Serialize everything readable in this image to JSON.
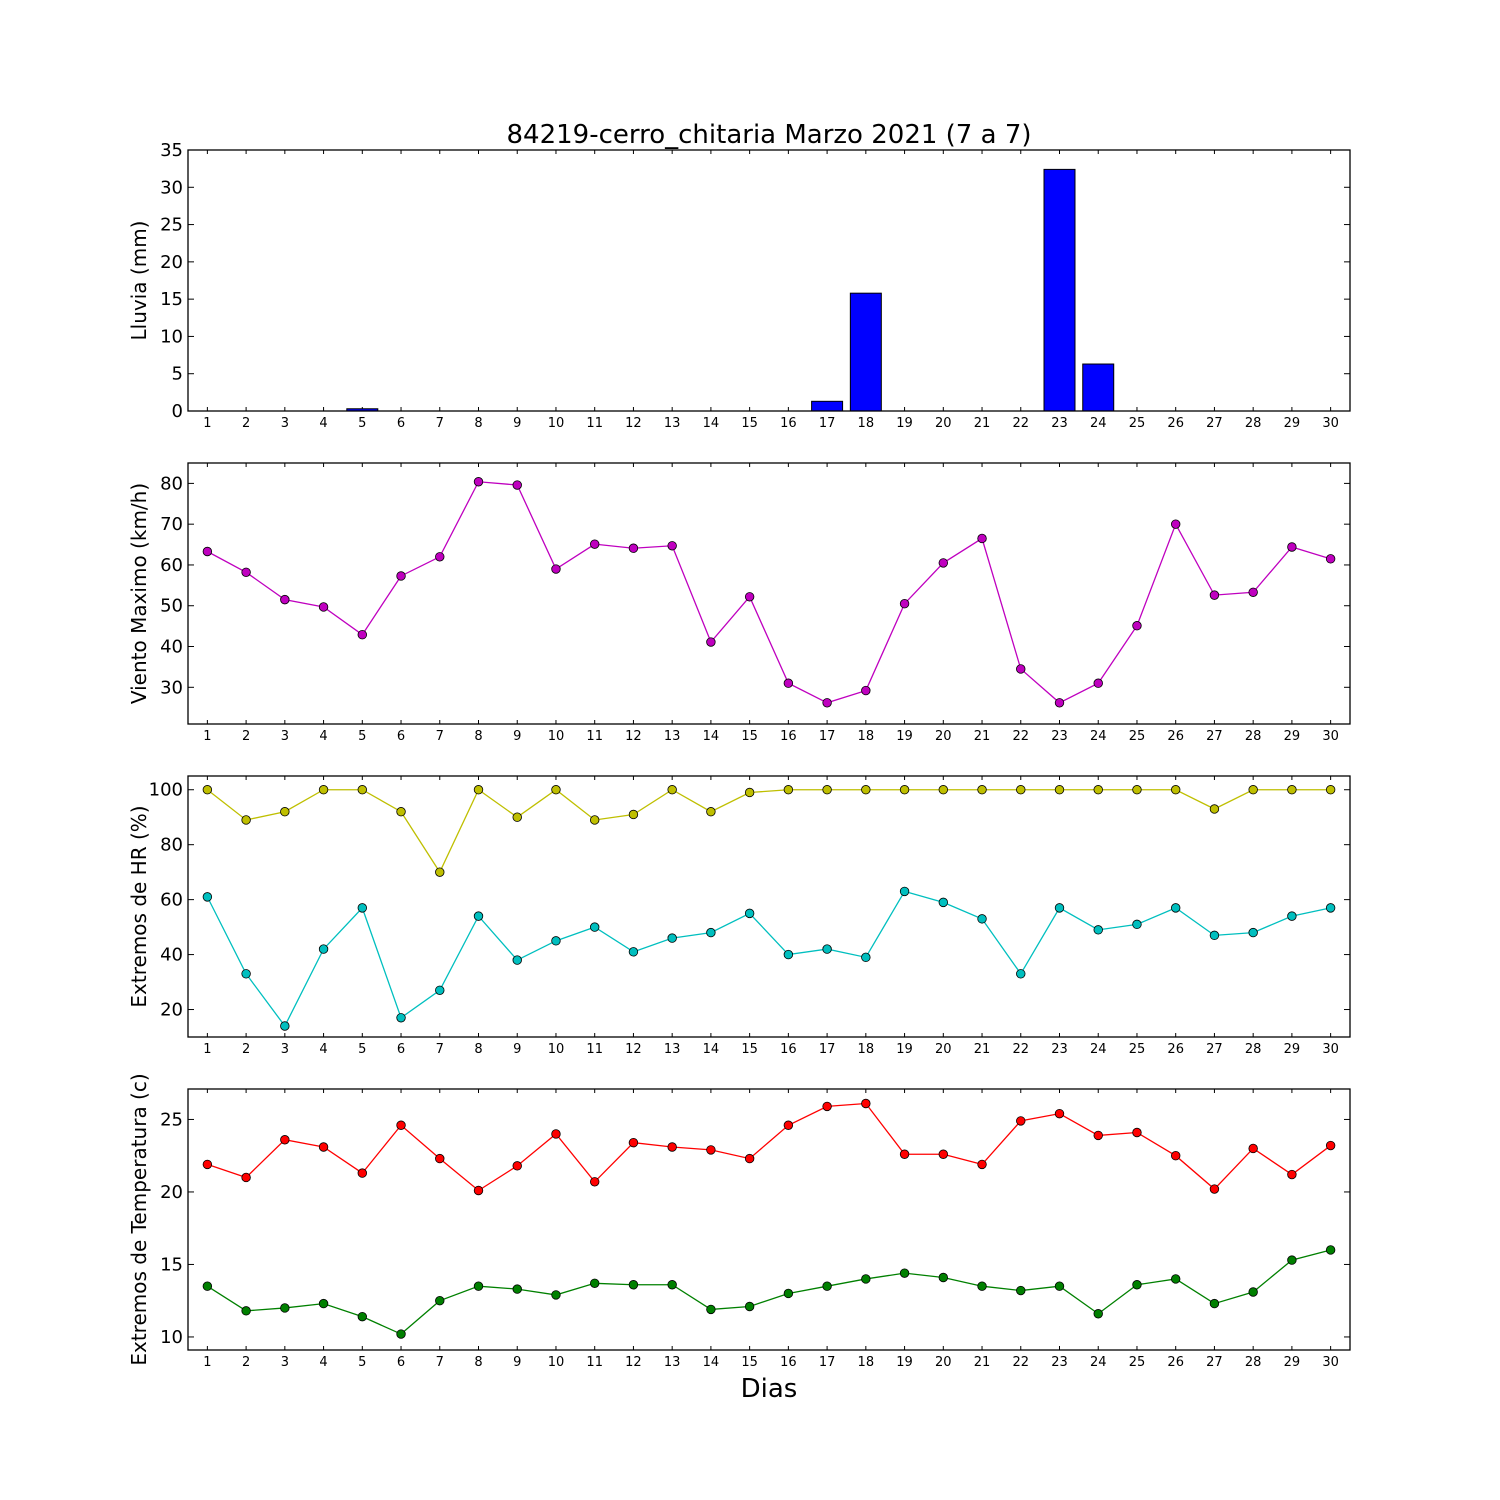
{
  "title": "84219-cerro_chitaria Marzo 2021  (7 a 7)",
  "xlabel": "Dias",
  "chart_data": [
    {
      "type": "bar",
      "ylabel": "Lluvia (mm)",
      "x": [
        1,
        2,
        3,
        4,
        5,
        6,
        7,
        8,
        9,
        10,
        11,
        12,
        13,
        14,
        15,
        16,
        17,
        18,
        19,
        20,
        21,
        22,
        23,
        24,
        25,
        26,
        27,
        28,
        29,
        30
      ],
      "ylim": [
        0,
        35
      ],
      "yticks": [
        0,
        5,
        10,
        15,
        20,
        25,
        30,
        35
      ],
      "series": [
        {
          "color": "#0000ff",
          "values": [
            0,
            0,
            0,
            0,
            0.3,
            0,
            0,
            0,
            0,
            0,
            0,
            0,
            0,
            0,
            0,
            0,
            1.3,
            15.8,
            0,
            0,
            0,
            0,
            32.4,
            6.3,
            0,
            0,
            0,
            0,
            0,
            0
          ]
        }
      ]
    },
    {
      "type": "line",
      "ylabel": "Viento Maximo (km/h)",
      "x": [
        1,
        2,
        3,
        4,
        5,
        6,
        7,
        8,
        9,
        10,
        11,
        12,
        13,
        14,
        15,
        16,
        17,
        18,
        19,
        20,
        21,
        22,
        23,
        24,
        25,
        26,
        27,
        28,
        29,
        30
      ],
      "ylim": [
        21,
        85
      ],
      "yticks": [
        30,
        40,
        50,
        60,
        70,
        80
      ],
      "series": [
        {
          "color": "#bf00bf",
          "values": [
            63.3,
            58.2,
            51.5,
            49.7,
            42.9,
            57.3,
            62.0,
            80.4,
            79.6,
            59.0,
            65.1,
            64.1,
            64.7,
            41.1,
            52.2,
            31.0,
            26.2,
            29.2,
            50.5,
            60.5,
            66.5,
            34.5,
            26.2,
            31.0,
            45.1,
            70.0,
            52.6,
            53.3,
            64.4,
            61.5
          ]
        }
      ]
    },
    {
      "type": "line",
      "ylabel": "Extremos de HR (%)",
      "x": [
        1,
        2,
        3,
        4,
        5,
        6,
        7,
        8,
        9,
        10,
        11,
        12,
        13,
        14,
        15,
        16,
        17,
        18,
        19,
        20,
        21,
        22,
        23,
        24,
        25,
        26,
        27,
        28,
        29,
        30
      ],
      "ylim": [
        10,
        105
      ],
      "yticks": [
        20,
        40,
        60,
        80,
        100
      ],
      "series": [
        {
          "color": "#bfbf00",
          "values": [
            100,
            89,
            92,
            100,
            100,
            92,
            70,
            100,
            90,
            100,
            89,
            91,
            100,
            92,
            99,
            100,
            100,
            100,
            100,
            100,
            100,
            100,
            100,
            100,
            100,
            100,
            93,
            100,
            100,
            100
          ]
        },
        {
          "color": "#00bfbf",
          "values": [
            61,
            33,
            14,
            42,
            57,
            17,
            27,
            54,
            38,
            45,
            50,
            41,
            46,
            48,
            55,
            40,
            42,
            39,
            63,
            59,
            53,
            33,
            57,
            49,
            51,
            57,
            47,
            48,
            54,
            57
          ]
        }
      ]
    },
    {
      "type": "line",
      "ylabel": "Extremos de Temperatura (c)",
      "x": [
        1,
        2,
        3,
        4,
        5,
        6,
        7,
        8,
        9,
        10,
        11,
        12,
        13,
        14,
        15,
        16,
        17,
        18,
        19,
        20,
        21,
        22,
        23,
        24,
        25,
        26,
        27,
        28,
        29,
        30
      ],
      "ylim": [
        9.1,
        27.1
      ],
      "yticks": [
        10,
        15,
        20,
        25
      ],
      "series": [
        {
          "color": "#ff0000",
          "values": [
            21.9,
            21.0,
            23.6,
            23.1,
            21.3,
            24.6,
            22.3,
            20.1,
            21.8,
            24.0,
            20.7,
            23.4,
            23.1,
            22.9,
            22.3,
            24.6,
            25.9,
            26.1,
            22.6,
            22.6,
            21.9,
            24.9,
            25.4,
            23.9,
            24.1,
            22.5,
            20.2,
            23.0,
            21.2,
            23.2
          ]
        },
        {
          "color": "#008000",
          "values": [
            13.5,
            11.8,
            12.0,
            12.3,
            11.4,
            10.2,
            12.5,
            13.5,
            13.3,
            12.9,
            13.7,
            13.6,
            13.6,
            11.9,
            12.1,
            13.0,
            13.5,
            14.0,
            14.4,
            14.1,
            13.5,
            13.2,
            13.5,
            11.6,
            13.6,
            14.0,
            12.3,
            13.1,
            15.3,
            16.0
          ]
        }
      ]
    }
  ]
}
